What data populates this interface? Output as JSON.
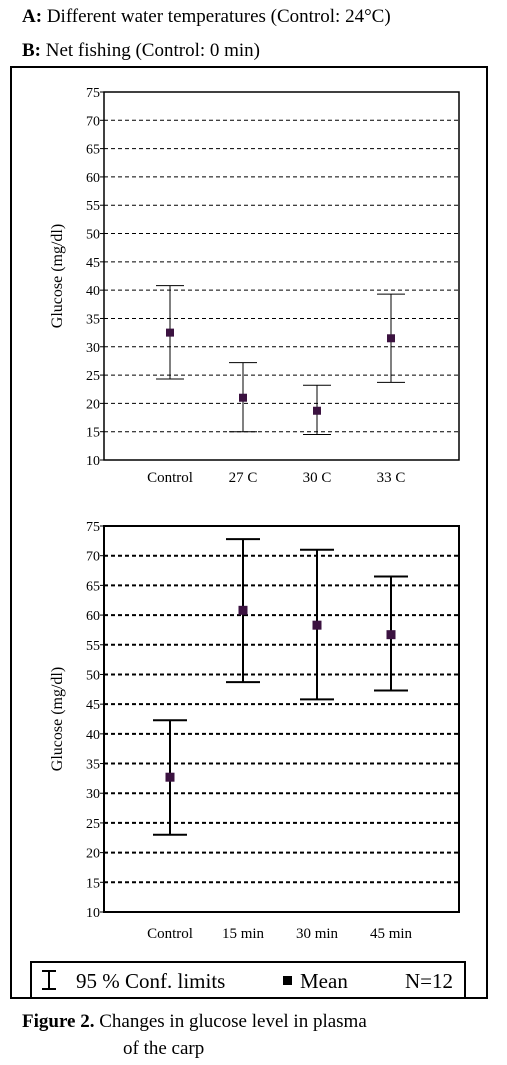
{
  "header": {
    "a_label": "A:",
    "a_text": "Different water temperatures (Control: 24°C)",
    "b_label": "B:",
    "b_text": "Net fishing (Control: 0 min)"
  },
  "chart_data": [
    {
      "id": "A",
      "type": "errorbar",
      "ylabel": "Glucose (mg/dl)",
      "ylim": [
        10,
        75
      ],
      "yticks": [
        10,
        15,
        20,
        25,
        30,
        35,
        40,
        45,
        50,
        55,
        60,
        65,
        70,
        75
      ],
      "categories": [
        "Control",
        "27 C",
        "30 C",
        "33 C"
      ],
      "series": [
        {
          "mean": [
            32.5,
            21,
            18.7,
            31.5
          ],
          "lower": [
            24.3,
            15,
            14.5,
            23.7
          ],
          "upper": [
            40.8,
            27.2,
            23.2,
            39.3
          ]
        }
      ],
      "grid": true
    },
    {
      "id": "B",
      "type": "errorbar",
      "ylabel": "Glucose (mg/dl)",
      "ylim": [
        10,
        75
      ],
      "yticks": [
        10,
        15,
        20,
        25,
        30,
        35,
        40,
        45,
        50,
        55,
        60,
        65,
        70,
        75
      ],
      "categories": [
        "Control",
        "15 min",
        "30 min",
        "45 min"
      ],
      "series": [
        {
          "mean": [
            32.7,
            60.8,
            58.3,
            56.7
          ],
          "lower": [
            23,
            48.7,
            45.8,
            47.3
          ],
          "upper": [
            42.3,
            72.8,
            71,
            66.5
          ]
        }
      ],
      "grid": true
    }
  ],
  "legend": {
    "conf_label": "95 % Conf. limits",
    "mean_label": "Mean",
    "n_label": "N=12"
  },
  "caption": {
    "label": "Figure 2.",
    "line1": "Changes in glucose level in plasma",
    "line2": "of the carp"
  }
}
